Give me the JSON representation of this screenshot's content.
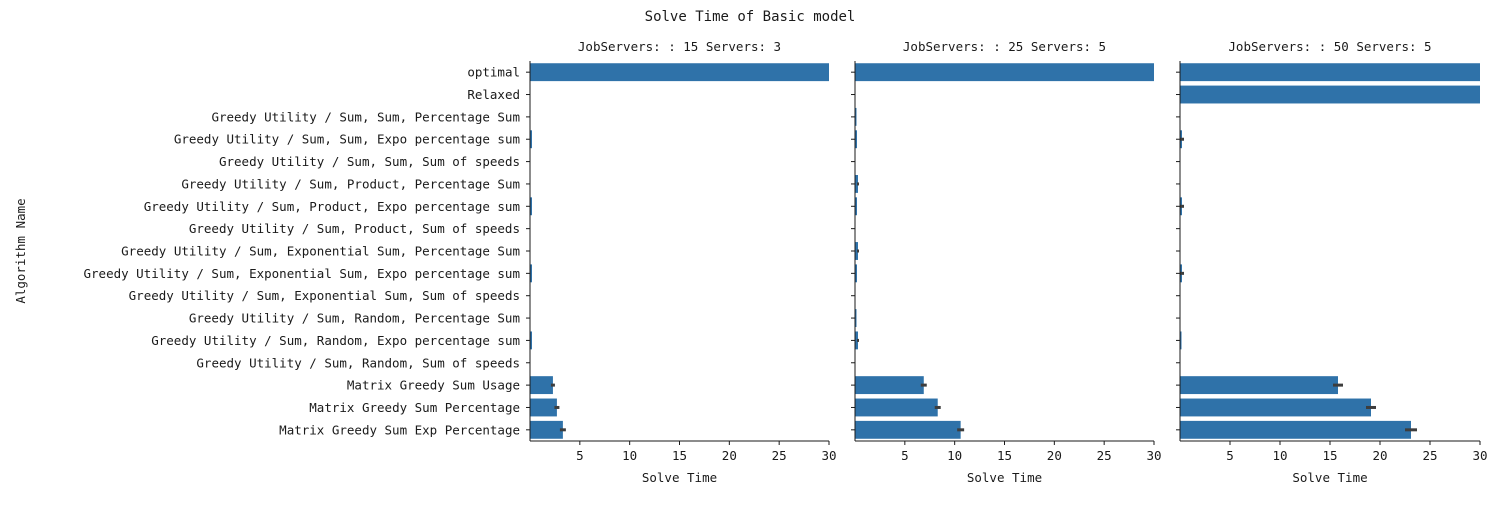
{
  "chart_data": {
    "type": "bar",
    "orientation": "horizontal",
    "title": "Solve Time of Basic model",
    "ylabel": "Algorithm Name",
    "xlabel": "Solve Time",
    "xlim": [
      0,
      30
    ],
    "xticks": [
      5,
      10,
      15,
      20,
      25,
      30
    ],
    "grid": false,
    "bar_color": "#2f72a9",
    "errorbar_color": "#3d3d3d",
    "categories": [
      "optimal",
      "Relaxed",
      "Greedy Utility / Sum, Sum, Percentage Sum",
      "Greedy Utility / Sum, Sum, Expo percentage sum",
      "Greedy Utility / Sum, Sum, Sum of speeds",
      "Greedy Utility / Sum, Product, Percentage Sum",
      "Greedy Utility / Sum, Product, Expo percentage sum",
      "Greedy Utility / Sum, Product, Sum of speeds",
      "Greedy Utility / Sum, Exponential Sum, Percentage Sum",
      "Greedy Utility / Sum, Exponential Sum, Expo percentage sum",
      "Greedy Utility / Sum, Exponential Sum, Sum of speeds",
      "Greedy Utility / Sum, Random, Percentage Sum",
      "Greedy Utility / Sum, Random, Expo percentage sum",
      "Greedy Utility / Sum, Random, Sum of speeds",
      "Matrix Greedy Sum Usage",
      "Matrix Greedy Sum Percentage",
      "Matrix Greedy Sum Exp Percentage"
    ],
    "panels": [
      {
        "title": "JobServers: : 15 Servers: 3",
        "values": [
          30,
          0,
          0.02,
          0.2,
          0.01,
          0.03,
          0.2,
          0.01,
          0.04,
          0.2,
          0.01,
          0.03,
          0.2,
          0.01,
          2.3,
          2.7,
          3.3
        ],
        "errors": [
          0,
          0,
          0,
          0,
          0,
          0,
          0,
          0,
          0,
          0,
          0,
          0,
          0,
          0,
          0.2,
          0.25,
          0.3
        ]
      },
      {
        "title": "JobServers: : 25 Servers: 5",
        "values": [
          30,
          0,
          0.15,
          0.2,
          0.02,
          0.3,
          0.2,
          0.02,
          0.3,
          0.2,
          0.02,
          0.15,
          0.3,
          0.02,
          6.9,
          8.3,
          10.6
        ],
        "errors": [
          0,
          0,
          0,
          0,
          0,
          0.1,
          0,
          0,
          0.1,
          0,
          0,
          0,
          0.1,
          0,
          0.3,
          0.3,
          0.35
        ]
      },
      {
        "title": "JobServers: : 50 Servers: 5",
        "values": [
          30,
          30,
          0.05,
          0.2,
          0.03,
          0.05,
          0.2,
          0.03,
          0.05,
          0.2,
          0.03,
          0.05,
          0.15,
          0.03,
          15.8,
          19.1,
          23.1
        ],
        "errors": [
          0,
          0,
          0,
          0.2,
          0,
          0,
          0.2,
          0,
          0,
          0.2,
          0,
          0,
          0,
          0,
          0.5,
          0.5,
          0.6
        ]
      }
    ]
  }
}
